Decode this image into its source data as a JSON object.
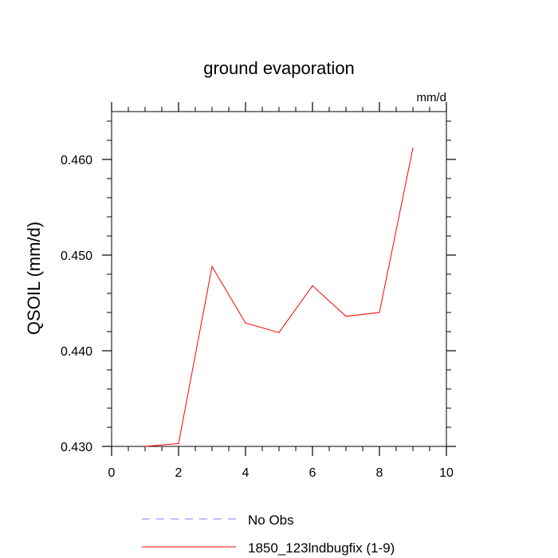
{
  "chart_data": {
    "type": "line",
    "title": "ground evaporation",
    "units_label": "mm/d",
    "ylabel": "QSOIL  (mm/d)",
    "xlabel": "",
    "xlim": [
      0,
      10
    ],
    "ylim": [
      0.43,
      0.465
    ],
    "x_ticks": [
      0,
      2,
      4,
      6,
      8,
      10
    ],
    "x_tick_labels": [
      "0",
      "2",
      "4",
      "6",
      "8",
      "10"
    ],
    "y_ticks": [
      0.43,
      0.44,
      0.45,
      0.46
    ],
    "y_tick_labels": [
      "0.430",
      "0.440",
      "0.450",
      "0.460"
    ],
    "grid": false,
    "legend_position": "bottom",
    "series": [
      {
        "name": "1850_123lndbugfix (1-9)",
        "color": "#ff0000",
        "style": "solid",
        "x": [
          1,
          2,
          3,
          4,
          5,
          6,
          7,
          8,
          9
        ],
        "values": [
          0.43,
          0.4303,
          0.4488,
          0.4429,
          0.4419,
          0.4468,
          0.4436,
          0.444,
          0.4612
        ]
      }
    ],
    "legend": [
      {
        "label": "No Obs",
        "color": "#8080ff",
        "style": "dashed"
      },
      {
        "label": "1850_123lndbugfix (1-9)",
        "color": "#ff0000",
        "style": "solid"
      }
    ]
  }
}
